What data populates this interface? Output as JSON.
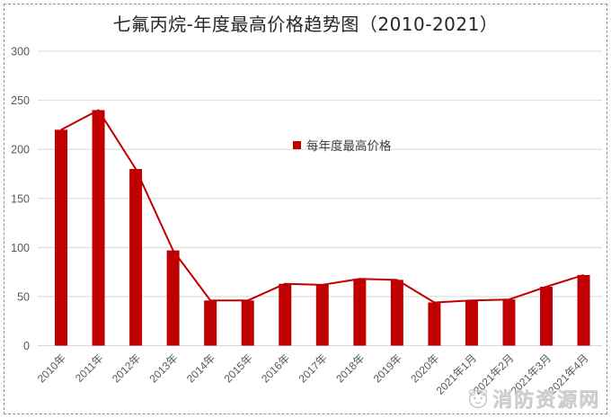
{
  "page": {
    "watermark": {
      "text": "消防资源网",
      "icon": "mascot-logo-icon"
    }
  },
  "chart_data": {
    "type": "bar",
    "line_overlay": true,
    "title": "七氟丙烷-年度最高价格趋势图（2010-2021）",
    "legend": [
      "每年度最高价格"
    ],
    "legend_position": "center",
    "categories": [
      "2010年",
      "2011年",
      "2012年",
      "2013年",
      "2014年",
      "2015年",
      "2016年",
      "2017年",
      "2018年",
      "2019年",
      "2020年",
      "2021年1月",
      "2021年2月",
      "2021年3月",
      "2021年4月"
    ],
    "values": [
      220,
      240,
      180,
      97,
      46,
      46,
      63,
      62,
      68,
      67,
      44,
      46,
      47,
      60,
      72
    ],
    "xlabel": "",
    "ylabel": "",
    "ylim": [
      0,
      300
    ],
    "yticks": [
      0,
      50,
      100,
      150,
      200,
      250,
      300
    ],
    "grid": "horizontal",
    "colors": {
      "bar": "#c00000",
      "line": "#c00000",
      "grid": "#d9d9d9",
      "tick_label": "#595959",
      "title": "#262626",
      "watermark": "#cdcdcd",
      "border": "#8f8f8f"
    }
  }
}
